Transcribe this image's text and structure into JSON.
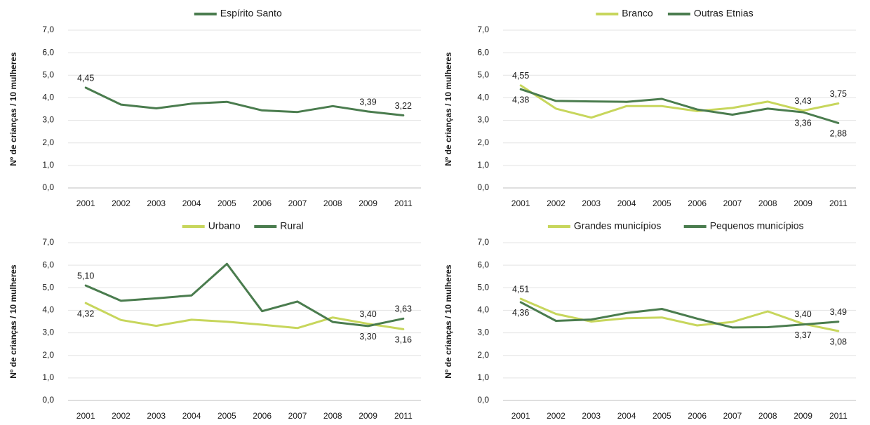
{
  "chart_data": [
    {
      "type": "line",
      "ylabel": "Nº de crianças / 10 mulheres",
      "categories": [
        "2001",
        "2002",
        "2003",
        "2004",
        "2005",
        "2006",
        "2007",
        "2008",
        "2009",
        "2011"
      ],
      "ylim": [
        0,
        7
      ],
      "yticks": [
        "0,0",
        "1,0",
        "2,0",
        "3,0",
        "4,0",
        "5,0",
        "6,0",
        "7,0"
      ],
      "grid": true,
      "legend_position": "top",
      "series": [
        {
          "name": "Espírito Santo",
          "color": "#4a7c4e",
          "values": [
            4.45,
            3.7,
            3.53,
            3.74,
            3.82,
            3.44,
            3.37,
            3.63,
            3.39,
            3.22
          ],
          "labels": [
            {
              "index": 0,
              "text": "4,45",
              "pos": "above"
            },
            {
              "index": 8,
              "text": "3,39",
              "pos": "above"
            },
            {
              "index": 9,
              "text": "3,22",
              "pos": "above"
            }
          ]
        }
      ]
    },
    {
      "type": "line",
      "ylabel": "Nº de crianças / 10 mulheres",
      "categories": [
        "2001",
        "2002",
        "2003",
        "2004",
        "2005",
        "2006",
        "2007",
        "2008",
        "2009",
        "2011"
      ],
      "ylim": [
        0,
        7
      ],
      "yticks": [
        "0,0",
        "1,0",
        "2,0",
        "3,0",
        "4,0",
        "5,0",
        "6,0",
        "7,0"
      ],
      "grid": true,
      "legend_position": "top",
      "series": [
        {
          "name": "Branco",
          "color": "#c7d65c",
          "values": [
            4.55,
            3.52,
            3.12,
            3.63,
            3.63,
            3.41,
            3.55,
            3.83,
            3.43,
            3.75
          ],
          "labels": [
            {
              "index": 0,
              "text": "4,55",
              "pos": "above"
            },
            {
              "index": 8,
              "text": "3,43",
              "pos": "above"
            },
            {
              "index": 9,
              "text": "3,75",
              "pos": "above"
            }
          ]
        },
        {
          "name": "Outras Etnias",
          "color": "#4a7c4e",
          "values": [
            4.38,
            3.86,
            3.84,
            3.82,
            3.95,
            3.48,
            3.25,
            3.52,
            3.36,
            2.88
          ],
          "labels": [
            {
              "index": 0,
              "text": "4,38",
              "pos": "below"
            },
            {
              "index": 8,
              "text": "3,36",
              "pos": "below"
            },
            {
              "index": 9,
              "text": "2,88",
              "pos": "below"
            }
          ]
        }
      ]
    },
    {
      "type": "line",
      "ylabel": "Nº de crianças / 10 mulheres",
      "categories": [
        "2001",
        "2002",
        "2003",
        "2004",
        "2005",
        "2006",
        "2007",
        "2008",
        "2009",
        "2011"
      ],
      "ylim": [
        0,
        7
      ],
      "yticks": [
        "0,0",
        "1,0",
        "2,0",
        "3,0",
        "4,0",
        "5,0",
        "6,0",
        "7,0"
      ],
      "grid": true,
      "legend_position": "top",
      "series": [
        {
          "name": "Urbano",
          "color": "#c7d65c",
          "values": [
            4.32,
            3.57,
            3.31,
            3.58,
            3.49,
            3.36,
            3.21,
            3.68,
            3.4,
            3.16
          ],
          "labels": [
            {
              "index": 0,
              "text": "4,32",
              "pos": "below"
            },
            {
              "index": 8,
              "text": "3,40",
              "pos": "above"
            },
            {
              "index": 9,
              "text": "3,16",
              "pos": "below"
            }
          ]
        },
        {
          "name": "Rural",
          "color": "#4a7c4e",
          "values": [
            5.1,
            4.42,
            4.53,
            4.66,
            6.06,
            3.96,
            4.39,
            3.48,
            3.3,
            3.63
          ],
          "labels": [
            {
              "index": 0,
              "text": "5,10",
              "pos": "above"
            },
            {
              "index": 8,
              "text": "3,30",
              "pos": "below"
            },
            {
              "index": 9,
              "text": "3,63",
              "pos": "above"
            }
          ]
        }
      ]
    },
    {
      "type": "line",
      "ylabel": "Nº de crianças / 10 mulheres",
      "categories": [
        "2001",
        "2002",
        "2003",
        "2004",
        "2005",
        "2006",
        "2007",
        "2008",
        "2009",
        "2011"
      ],
      "ylim": [
        0,
        7
      ],
      "yticks": [
        "0,0",
        "1,0",
        "2,0",
        "3,0",
        "4,0",
        "5,0",
        "6,0",
        "7,0"
      ],
      "grid": true,
      "legend_position": "top",
      "series": [
        {
          "name": "Grandes municípios",
          "color": "#c7d65c",
          "values": [
            4.51,
            3.84,
            3.5,
            3.65,
            3.68,
            3.33,
            3.48,
            3.95,
            3.4,
            3.08
          ],
          "labels": [
            {
              "index": 0,
              "text": "4,51",
              "pos": "above"
            },
            {
              "index": 8,
              "text": "3,40",
              "pos": "above"
            },
            {
              "index": 9,
              "text": "3,08",
              "pos": "below"
            }
          ]
        },
        {
          "name": "Pequenos municípios",
          "color": "#4a7c4e",
          "values": [
            4.36,
            3.53,
            3.59,
            3.88,
            4.06,
            3.63,
            3.24,
            3.25,
            3.37,
            3.49
          ],
          "labels": [
            {
              "index": 0,
              "text": "4,36",
              "pos": "below"
            },
            {
              "index": 8,
              "text": "3,37",
              "pos": "below"
            },
            {
              "index": 9,
              "text": "3,49",
              "pos": "above"
            }
          ]
        }
      ]
    }
  ]
}
